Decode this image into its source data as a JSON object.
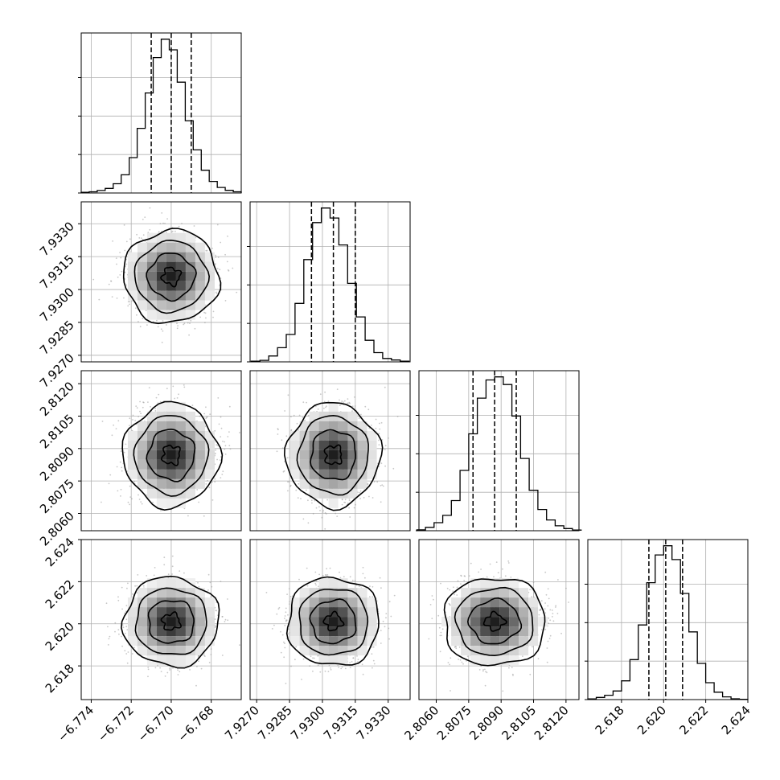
{
  "figure_type": "corner-plot",
  "colors": {
    "ink": "#000000",
    "grid": "#b0b0b0",
    "scatter": "#9a9a9a",
    "background": "#ffffff"
  },
  "chart_data": [
    {
      "type": "histogram",
      "panel": "diag-0",
      "xlim": [
        -6.7745,
        -6.7665
      ],
      "bin_width": 0.0004,
      "peak_count": 1000,
      "quantiles": [
        -6.771,
        -6.77,
        -6.769
      ],
      "grid": true,
      "counts": [
        4,
        8,
        16,
        30,
        60,
        118,
        230,
        420,
        650,
        880,
        1000,
        930,
        720,
        470,
        280,
        148,
        75,
        36,
        17,
        8
      ]
    },
    {
      "type": "histogram",
      "panel": "diag-1",
      "xlim": [
        7.9267,
        7.934
      ],
      "bin_width": 0.0004,
      "peak_count": 1000,
      "quantiles": [
        7.9295,
        7.9305,
        7.9315
      ],
      "grid": true,
      "counts": [
        4,
        10,
        38,
        92,
        178,
        380,
        665,
        905,
        1000,
        935,
        760,
        510,
        292,
        140,
        60,
        22,
        12,
        4
      ]
    },
    {
      "type": "histogram",
      "panel": "diag-2",
      "xlim": [
        2.8052,
        2.8126
      ],
      "bin_width": 0.0004,
      "peak_count": 1000,
      "quantiles": [
        2.8077,
        2.8087,
        2.8097
      ],
      "grid": true,
      "counts": [
        6,
        22,
        52,
        100,
        196,
        392,
        630,
        862,
        980,
        1000,
        950,
        745,
        470,
        263,
        138,
        70,
        32,
        14,
        4
      ]
    },
    {
      "type": "histogram",
      "panel": "diag-3",
      "xlim": [
        2.6164,
        2.624
      ],
      "bin_width": 0.0004,
      "peak_count": 1000,
      "quantiles": [
        2.6193,
        2.6201,
        2.6209
      ],
      "grid": true,
      "counts": [
        4,
        14,
        28,
        56,
        122,
        260,
        485,
        760,
        940,
        1000,
        910,
        690,
        440,
        235,
        110,
        48,
        18,
        5,
        2
      ]
    },
    {
      "type": "scatter-contour",
      "panel": "1-0",
      "x_range": [
        -6.7745,
        -6.7665
      ],
      "y_range": [
        7.9267,
        7.934
      ],
      "center": [
        -6.77,
        7.9306
      ],
      "sigma": [
        0.0009,
        0.0008
      ],
      "grid": true
    },
    {
      "type": "scatter-contour",
      "panel": "2-0",
      "x_range": [
        -6.7745,
        -6.7665
      ],
      "y_range": [
        2.8052,
        2.8126
      ],
      "center": [
        -6.77,
        2.8087
      ],
      "sigma": [
        0.0009,
        0.0009
      ],
      "grid": true
    },
    {
      "type": "scatter-contour",
      "panel": "2-1",
      "x_range": [
        7.9267,
        7.934
      ],
      "y_range": [
        2.8052,
        2.8126
      ],
      "center": [
        7.9305,
        2.8087
      ],
      "sigma": [
        0.0008,
        0.0009
      ],
      "grid": true
    },
    {
      "type": "scatter-contour",
      "panel": "3-0",
      "x_range": [
        -6.7745,
        -6.7665
      ],
      "y_range": [
        2.6164,
        2.624
      ],
      "center": [
        -6.77,
        2.6201
      ],
      "sigma": [
        0.0009,
        0.0008
      ],
      "grid": true
    },
    {
      "type": "scatter-contour",
      "panel": "3-1",
      "x_range": [
        7.9267,
        7.934
      ],
      "y_range": [
        2.6164,
        2.624
      ],
      "center": [
        7.9305,
        2.6201
      ],
      "sigma": [
        0.0008,
        0.0008
      ],
      "grid": true
    },
    {
      "type": "scatter-contour",
      "panel": "3-2",
      "x_range": [
        2.8052,
        2.8126
      ],
      "y_range": [
        2.6164,
        2.624
      ],
      "center": [
        2.8087,
        2.6201
      ],
      "sigma": [
        0.0009,
        0.0008
      ],
      "grid": true
    }
  ],
  "ticks": {
    "bottom": [
      {
        "col": 0,
        "values": [
          -6.774,
          -6.772,
          -6.77,
          -6.768
        ],
        "labels": [
          "−6.774",
          "−6.772",
          "−6.770",
          "−6.768"
        ]
      },
      {
        "col": 1,
        "values": [
          7.927,
          7.9285,
          7.93,
          7.9315,
          7.933
        ],
        "labels": [
          "7.9270",
          "7.9285",
          "7.9300",
          "7.9315",
          "7.9330"
        ]
      },
      {
        "col": 2,
        "values": [
          2.806,
          2.8075,
          2.809,
          2.8105,
          2.812
        ],
        "labels": [
          "2.8060",
          "2.8075",
          "2.8090",
          "2.8105",
          "2.8120"
        ]
      },
      {
        "col": 3,
        "values": [
          2.618,
          2.62,
          2.622,
          2.624
        ],
        "labels": [
          "2.618",
          "2.620",
          "2.622",
          "2.624"
        ]
      }
    ],
    "left": [
      {
        "row": 1,
        "values": [
          7.927,
          7.9285,
          7.93,
          7.9315,
          7.933
        ],
        "labels": [
          "7.9270",
          "7.9285",
          "7.9300",
          "7.9315",
          "7.9330"
        ]
      },
      {
        "row": 2,
        "values": [
          2.806,
          2.8075,
          2.809,
          2.8105,
          2.812
        ],
        "labels": [
          "2.8060",
          "2.8075",
          "2.8090",
          "2.8105",
          "2.8120"
        ]
      },
      {
        "row": 3,
        "values": [
          2.618,
          2.62,
          2.622,
          2.624
        ],
        "labels": [
          "2.618",
          "2.620",
          "2.622",
          "2.624"
        ]
      }
    ]
  }
}
